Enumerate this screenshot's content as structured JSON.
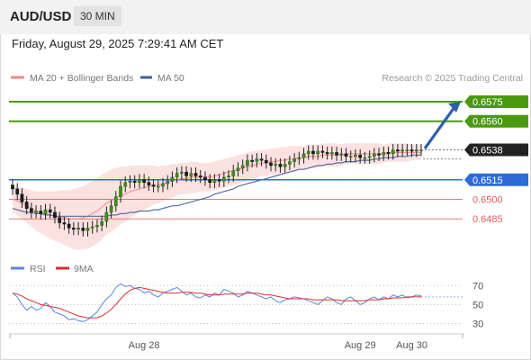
{
  "header": {
    "symbol": "AUD/USD",
    "timeframe": "30 MIN"
  },
  "datetime": "Friday, August 29, 2025 7:29:41 AM CET",
  "legend": {
    "ma20_bb": "MA 20 + Bollinger Bands",
    "ma50": "MA 50",
    "credit": "Research © 2025 Trading Central"
  },
  "rsi_legend": {
    "rsi": "RSI",
    "ma": "9MA"
  },
  "colors": {
    "green": "#4a9a10",
    "blue": "#2f6bd8",
    "red": "#e25b5b",
    "dark": "#222222",
    "arrow": "#2f5fa8",
    "band": "#fbd7d7",
    "ma20": "#ef8a8a",
    "ma50": "#536fa3",
    "rsi": "#5b86e0",
    "rsi_ma": "#d93030"
  },
  "chart_data": [
    {
      "type": "line",
      "title": "",
      "ylim": [
        0.6472,
        0.6584
      ],
      "levels": [
        {
          "value": 0.6575,
          "label": "0.6575",
          "style": "resistance"
        },
        {
          "value": 0.656,
          "label": "0.6560",
          "style": "resistance"
        },
        {
          "value": 0.6538,
          "label": "0.6538",
          "style": "last-price"
        },
        {
          "value": 0.6515,
          "label": "0.6515",
          "style": "pivot"
        },
        {
          "value": 0.65,
          "label": "0.6500",
          "style": "support"
        },
        {
          "value": 0.6485,
          "label": "0.6485",
          "style": "support"
        }
      ],
      "projection": {
        "from": 0.6539,
        "to": 0.6575
      },
      "close": [
        0.6508,
        0.6504,
        0.6498,
        0.6493,
        0.649,
        0.6491,
        0.6489,
        0.6492,
        0.649,
        0.6486,
        0.6482,
        0.6481,
        0.6478,
        0.6477,
        0.6478,
        0.6476,
        0.6478,
        0.6479,
        0.648,
        0.6483,
        0.649,
        0.6495,
        0.6502,
        0.651,
        0.6513,
        0.6514,
        0.6513,
        0.6515,
        0.6513,
        0.6511,
        0.651,
        0.651,
        0.6512,
        0.6514,
        0.6517,
        0.652,
        0.6521,
        0.6518,
        0.652,
        0.6518,
        0.6517,
        0.6515,
        0.6513,
        0.6515,
        0.6514,
        0.6517,
        0.6518,
        0.6522,
        0.6524,
        0.6526,
        0.653,
        0.6529,
        0.6531,
        0.653,
        0.6528,
        0.6526,
        0.6527,
        0.6525,
        0.6527,
        0.6529,
        0.6531,
        0.6532,
        0.6535,
        0.6537,
        0.6535,
        0.6537,
        0.6536,
        0.6535,
        0.6536,
        0.6534,
        0.6535,
        0.6533,
        0.6533,
        0.6534,
        0.6532,
        0.6532,
        0.6533,
        0.6535,
        0.6534,
        0.6536,
        0.6535,
        0.6538,
        0.6537,
        0.6538,
        0.6538,
        0.6537,
        0.6538,
        0.6538
      ],
      "ma20": [
        0.65,
        0.6499,
        0.6497,
        0.6495,
        0.6493,
        0.6491,
        0.649,
        0.6489,
        0.6488,
        0.6487,
        0.6487,
        0.6486,
        0.6485,
        0.6485,
        0.6485,
        0.6486,
        0.6487,
        0.6489,
        0.6491,
        0.6494,
        0.6497,
        0.6499,
        0.6501,
        0.6503,
        0.6504,
        0.6506,
        0.6507,
        0.6508,
        0.6509,
        0.651,
        0.6511,
        0.6511,
        0.6512,
        0.6513,
        0.6514,
        0.6515,
        0.6516,
        0.6516,
        0.6517,
        0.6517,
        0.6517,
        0.6517,
        0.6517,
        0.6518,
        0.6519,
        0.652,
        0.6521,
        0.6522,
        0.6523,
        0.6524,
        0.6525,
        0.6526,
        0.6527,
        0.6528,
        0.6528,
        0.6529,
        0.6529,
        0.653,
        0.653,
        0.6531,
        0.6531,
        0.6532,
        0.6532,
        0.6533,
        0.6533,
        0.6533,
        0.6534,
        0.6534,
        0.6534,
        0.6534,
        0.6534,
        0.6535,
        0.6535,
        0.6535,
        0.6535,
        0.6535,
        0.6535,
        0.6535,
        0.6535,
        0.6535,
        0.6536,
        0.6536,
        0.6536,
        0.6536,
        0.6536,
        0.6536,
        0.6536,
        0.6536
      ],
      "ma50": [
        0.6493,
        0.6492,
        0.6491,
        0.649,
        0.649,
        0.6489,
        0.6489,
        0.6488,
        0.6488,
        0.6487,
        0.6487,
        0.6487,
        0.6487,
        0.6487,
        0.6487,
        0.6487,
        0.6487,
        0.6487,
        0.6487,
        0.6487,
        0.6487,
        0.6488,
        0.6488,
        0.6489,
        0.6489,
        0.649,
        0.649,
        0.6491,
        0.6491,
        0.6491,
        0.6492,
        0.6492,
        0.6493,
        0.6494,
        0.6495,
        0.6495,
        0.6496,
        0.6497,
        0.6498,
        0.6499,
        0.65,
        0.6501,
        0.6502,
        0.6504,
        0.6505,
        0.6506,
        0.6507,
        0.6508,
        0.651,
        0.6511,
        0.6512,
        0.6513,
        0.6514,
        0.6515,
        0.6516,
        0.6517,
        0.6518,
        0.6519,
        0.652,
        0.6521,
        0.6522,
        0.6523,
        0.6523,
        0.6524,
        0.6525,
        0.6526,
        0.6526,
        0.6527,
        0.6527,
        0.6528,
        0.6528,
        0.6529,
        0.6529,
        0.6529,
        0.653,
        0.653,
        0.653,
        0.6531,
        0.6531,
        0.6532,
        0.6532,
        0.6532,
        0.6533,
        0.6533,
        0.6533,
        0.6534,
        0.6534,
        0.6534
      ],
      "bb_width": [
        0.001,
        0.0011,
        0.0012,
        0.0013,
        0.0014,
        0.0015,
        0.0016,
        0.0017,
        0.0018,
        0.0019,
        0.002,
        0.0021,
        0.0022,
        0.0023,
        0.0024,
        0.0024,
        0.0025,
        0.0025,
        0.0025,
        0.0025,
        0.0024,
        0.0024,
        0.0023,
        0.0022,
        0.0021,
        0.002,
        0.0019,
        0.0018,
        0.0017,
        0.0016,
        0.0015,
        0.0014,
        0.0014,
        0.0013,
        0.0013,
        0.0012,
        0.0012,
        0.0012,
        0.0012,
        0.0012,
        0.0011,
        0.0011,
        0.0011,
        0.0011,
        0.0011,
        0.0011,
        0.0011,
        0.0011,
        0.0011,
        0.0011,
        0.0011,
        0.0011,
        0.001,
        0.001,
        0.001,
        0.001,
        0.001,
        0.001,
        0.001,
        0.001,
        0.001,
        0.0009,
        0.0009,
        0.0009,
        0.0009,
        0.0009,
        0.0009,
        0.0009,
        0.0009,
        0.0009,
        0.0008,
        0.0008,
        0.0008,
        0.0008,
        0.0008,
        0.0008,
        0.0008,
        0.0008,
        0.0008,
        0.0007,
        0.0007,
        0.0007,
        0.0007,
        0.0007,
        0.0007,
        0.0006,
        0.0006,
        0.0006
      ]
    },
    {
      "type": "line",
      "title": "",
      "ylim": [
        20,
        75
      ],
      "y_ticks": [
        70,
        50,
        30
      ],
      "x_ticks": [
        {
          "index": 28,
          "label": "Aug 28"
        },
        {
          "index": 74,
          "label": "Aug 29"
        },
        {
          "index": 85,
          "label": "Aug 30"
        }
      ],
      "series": [
        {
          "name": "RSI",
          "values": [
            62,
            58,
            50,
            44,
            48,
            44,
            46,
            52,
            48,
            42,
            40,
            38,
            34,
            35,
            33,
            32,
            34,
            38,
            42,
            50,
            56,
            60,
            68,
            72,
            69,
            70,
            67,
            66,
            62,
            64,
            60,
            58,
            62,
            64,
            66,
            68,
            64,
            60,
            62,
            58,
            57,
            60,
            58,
            62,
            60,
            66,
            64,
            62,
            58,
            60,
            64,
            62,
            60,
            58,
            56,
            58,
            54,
            52,
            55,
            56,
            58,
            57,
            56,
            54,
            52,
            50,
            54,
            58,
            56,
            52,
            50,
            56,
            58,
            54,
            50,
            52,
            56,
            58,
            55,
            58,
            56,
            60,
            58,
            60,
            57,
            58,
            60,
            59
          ]
        },
        {
          "name": "9MA",
          "values": [
            62,
            61,
            59,
            56,
            54,
            52,
            50,
            49,
            48,
            47,
            46,
            44,
            42,
            40,
            38,
            37,
            36,
            36,
            36,
            38,
            41,
            45,
            50,
            56,
            61,
            65,
            67,
            68,
            67,
            66,
            65,
            64,
            63,
            62,
            62,
            62,
            63,
            63,
            63,
            62,
            62,
            61,
            60,
            60,
            60,
            61,
            61,
            61,
            61,
            61,
            62,
            62,
            62,
            61,
            60,
            60,
            59,
            58,
            57,
            56,
            56,
            56,
            56,
            56,
            55,
            55,
            55,
            55,
            55,
            55,
            54,
            54,
            54,
            54,
            54,
            54,
            55,
            55,
            55,
            56,
            56,
            57,
            57,
            57,
            58,
            58,
            58,
            58
          ]
        }
      ]
    }
  ]
}
